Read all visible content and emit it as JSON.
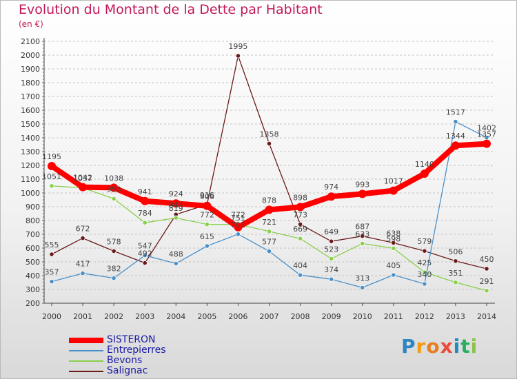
{
  "title": "Evolution du Montant de la Dette par Habitant",
  "subtitle": "(en €)",
  "logo": {
    "letters": [
      "P",
      "r",
      "o",
      "x",
      "i",
      "t",
      "i"
    ],
    "colors": [
      "#2e86c1",
      "#f39c12",
      "#e67e22",
      "#e74c3c",
      "#1e8bc3",
      "#27ae60",
      "#8bc34a"
    ]
  },
  "chart_data": {
    "type": "line",
    "x": [
      "2000",
      "2001",
      "2002",
      "2003",
      "2004",
      "2005",
      "2006",
      "2007",
      "2008",
      "2009",
      "2010",
      "2011",
      "2012",
      "2013",
      "2014"
    ],
    "ylim": [
      200,
      2100
    ],
    "yticks": [
      200,
      300,
      400,
      500,
      600,
      700,
      800,
      900,
      1000,
      1100,
      1200,
      1300,
      1400,
      1500,
      1600,
      1700,
      1800,
      1900,
      2000,
      2100
    ],
    "grid": "horizontal-dashed",
    "legend_position": "bottom-left",
    "series": [
      {
        "name": "Salignac",
        "color": "#6b1a1a",
        "values": [
          555,
          672,
          578,
          492,
          844,
          916,
          1995,
          1358,
          773,
          649,
          687,
          638,
          579,
          506,
          450
        ],
        "labels": [
          "555",
          "672",
          "578",
          "492",
          "844",
          "916",
          "1995",
          "1358",
          "773",
          "649",
          "687",
          "638",
          "579",
          "506",
          "450"
        ]
      },
      {
        "name": "Bevons",
        "color": "#88d04b",
        "values": [
          1051,
          1037,
          958,
          784,
          819,
          772,
          772,
          721,
          669,
          523,
          633,
          598,
          425,
          351,
          291
        ],
        "labels": [
          "1051",
          "1037",
          "958",
          "784",
          "819",
          "772",
          "772",
          "721",
          "669",
          "523",
          "633",
          "598",
          "425",
          "351",
          "291"
        ]
      },
      {
        "name": "Entrepierres",
        "color": "#4a90c8",
        "values": [
          357,
          417,
          382,
          547,
          488,
          615,
          701,
          577,
          404,
          374,
          313,
          405,
          340,
          1517,
          1402
        ],
        "labels": [
          "357",
          "417",
          "382",
          "547",
          "488",
          "615",
          "701",
          "577",
          "404",
          "374",
          "313",
          "405",
          "340",
          "1517",
          "1402"
        ]
      },
      {
        "name": "SISTERON",
        "color": "#ff0000",
        "values": [
          1195,
          1042,
          1038,
          941,
          924,
          906,
          751,
          878,
          898,
          974,
          993,
          1017,
          1140,
          1344,
          1357
        ],
        "labels": [
          "1195",
          "1042",
          "1038",
          "941",
          "924",
          "906",
          "751",
          "878",
          "898",
          "974",
          "993",
          "1017",
          "1140",
          "1344",
          "1357"
        ]
      }
    ],
    "legend": [
      "SISTERON",
      "Entrepierres",
      "Bevons",
      "Salignac"
    ]
  }
}
